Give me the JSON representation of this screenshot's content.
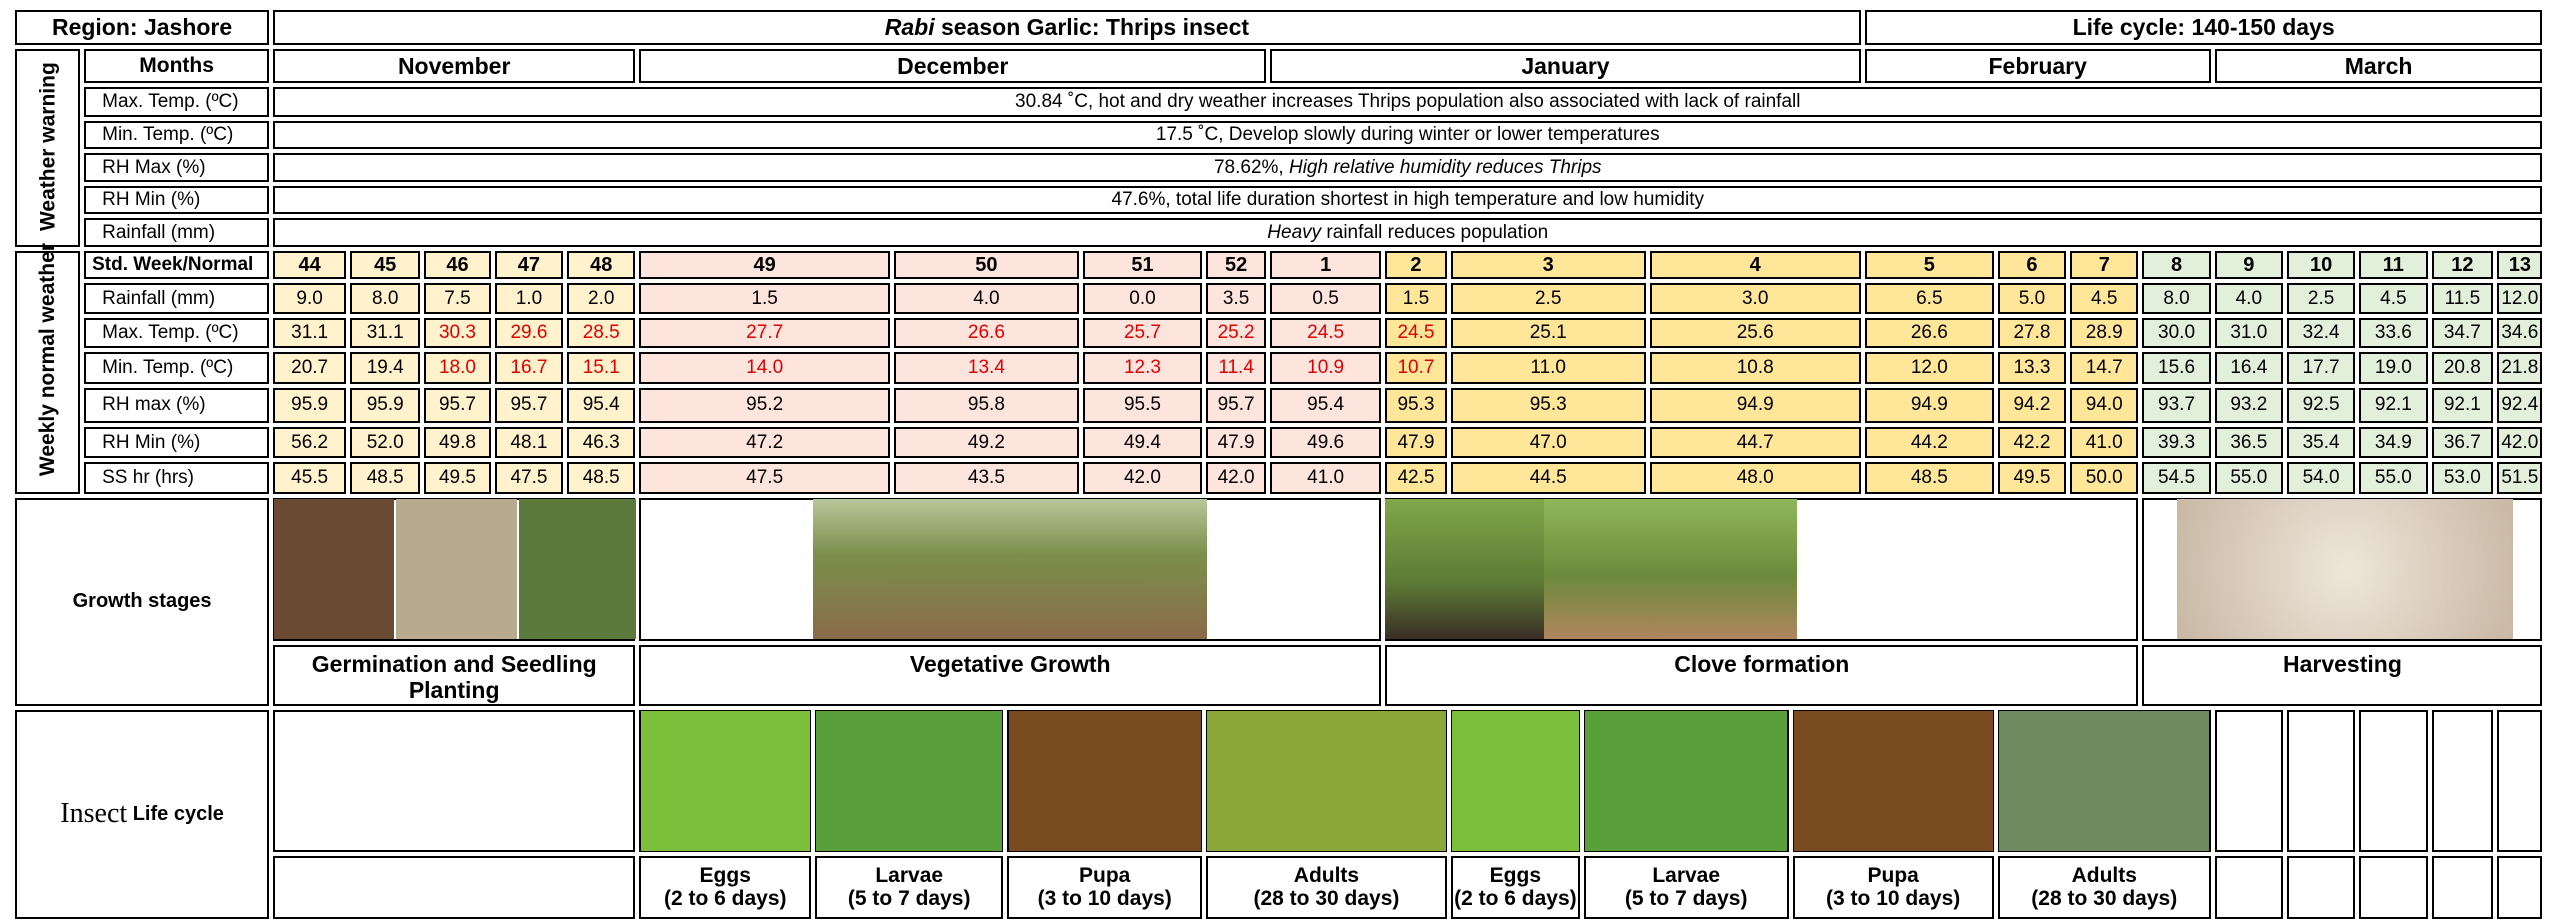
{
  "header": {
    "region": "Region: Jashore",
    "title": [
      {
        "text": "Rabi",
        "italic": true
      },
      {
        "text": " season Garlic: Thrips insect"
      }
    ],
    "life_cycle": "Life cycle: 140-150 days"
  },
  "months": {
    "label": "Months",
    "names": [
      "November",
      "December",
      "January",
      "February",
      "March"
    ]
  },
  "weather_warning": {
    "label": "Weather warning",
    "rows": [
      {
        "label": "Max. Temp. (ºC)",
        "text": [
          {
            "text": "30.84 ˚C, hot and dry weather increases Thrips population also associated with lack of rainfall"
          }
        ]
      },
      {
        "label": "Min. Temp. (ºC)",
        "text": [
          {
            "text": "17.5 ˚C, Develop slowly during winter or lower temperatures"
          }
        ]
      },
      {
        "label": "RH Max (%)",
        "text": [
          {
            "text": "78.62%, "
          },
          {
            "text": "High relative humidity reduces Thrips",
            "italic": true
          }
        ]
      },
      {
        "label": "RH Min (%)",
        "text": [
          {
            "text": "47.6%, total life duration shortest in high temperature and low humidity"
          }
        ]
      },
      {
        "label": "Rainfall (mm)",
        "text": [
          {
            "text": "Heavy",
            "italic": true
          },
          {
            "text": " rainfall reduces population"
          }
        ]
      }
    ]
  },
  "weekly": {
    "label": "Weekly normal weather",
    "header_label": "Std. Week/Normal",
    "weeks": [
      44,
      45,
      46,
      47,
      48,
      49,
      50,
      51,
      52,
      1,
      2,
      3,
      4,
      5,
      6,
      7,
      8,
      9,
      10,
      11,
      12,
      13
    ],
    "rows": [
      {
        "label": "Rainfall (mm)",
        "values": [
          "9.0",
          "8.0",
          "7.5",
          "1.0",
          "2.0",
          "1.5",
          "4.0",
          "0.0",
          "3.5",
          "0.5",
          "1.5",
          "2.5",
          "3.0",
          "6.5",
          "5.0",
          "4.5",
          "8.0",
          "4.0",
          "2.5",
          "4.5",
          "11.5",
          "12.0"
        ]
      },
      {
        "label": "Max. Temp. (ºC)",
        "values": [
          "31.1",
          "31.1",
          "30.3",
          "29.6",
          "28.5",
          "27.7",
          "26.6",
          "25.7",
          "25.2",
          "24.5",
          "24.5",
          "25.1",
          "25.6",
          "26.6",
          "27.8",
          "28.9",
          "30.0",
          "31.0",
          "32.4",
          "33.6",
          "34.7",
          "34.6"
        ]
      },
      {
        "label": "Min. Temp. (ºC)",
        "values": [
          "20.7",
          "19.4",
          "18.0",
          "16.7",
          "15.1",
          "14.0",
          "13.4",
          "12.3",
          "11.4",
          "10.9",
          "10.7",
          "11.0",
          "10.8",
          "12.0",
          "13.3",
          "14.7",
          "15.6",
          "16.4",
          "17.7",
          "19.0",
          "20.8",
          "21.8"
        ]
      },
      {
        "label": "RH max (%)",
        "values": [
          "95.9",
          "95.9",
          "95.7",
          "95.7",
          "95.4",
          "95.2",
          "95.8",
          "95.5",
          "95.7",
          "95.4",
          "95.3",
          "95.3",
          "94.9",
          "94.9",
          "94.2",
          "94.0",
          "93.7",
          "93.2",
          "92.5",
          "92.1",
          "92.1",
          "92.4"
        ]
      },
      {
        "label": "RH Min (%)",
        "values": [
          "56.2",
          "52.0",
          "49.8",
          "48.1",
          "46.3",
          "47.2",
          "49.2",
          "49.4",
          "47.9",
          "49.6",
          "47.9",
          "47.0",
          "44.7",
          "44.2",
          "42.2",
          "41.0",
          "39.3",
          "36.5",
          "35.4",
          "34.9",
          "36.7",
          "42.0"
        ]
      },
      {
        "label": "SS hr (hrs)",
        "values": [
          "45.5",
          "48.5",
          "49.5",
          "47.5",
          "48.5",
          "47.5",
          "43.5",
          "42.0",
          "42.0",
          "41.0",
          "42.5",
          "44.5",
          "48.0",
          "48.5",
          "49.5",
          "50.0",
          "54.5",
          "55.0",
          "54.0",
          "55.0",
          "53.0",
          "51.5"
        ]
      }
    ]
  },
  "growth": {
    "label": "Growth stages",
    "stages": [
      "Germination and Seedling Planting",
      "Vegetative Growth",
      "Clove formation",
      "Harvesting"
    ]
  },
  "insect": {
    "label": [
      {
        "text": "Insect"
      },
      {
        "text": " Life cycle"
      }
    ],
    "stages": [
      {
        "name": "Eggs",
        "duration": "(2 to 6 days)"
      },
      {
        "name": "Larvae",
        "duration": "(5 to 7 days)"
      },
      {
        "name": "Pupa",
        "duration": "(3 to 10 days)"
      },
      {
        "name": "Adults",
        "duration": "(28 to 30 days)"
      },
      {
        "name": "Eggs",
        "duration": "(2 to 6 days)"
      },
      {
        "name": "Larvae",
        "duration": "(5 to 7 days)"
      },
      {
        "name": "Pupa",
        "duration": "(3 to 10 days)"
      },
      {
        "name": "Adults",
        "duration": "(28 to 30 days)"
      }
    ]
  }
}
